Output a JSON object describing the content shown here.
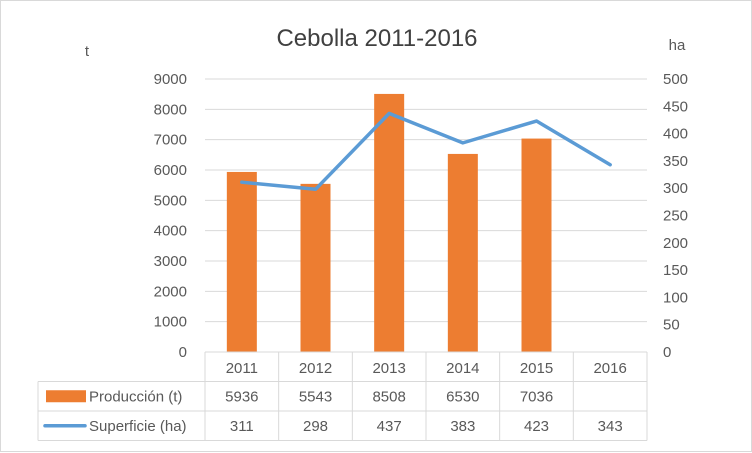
{
  "chart_data": {
    "type": "bar",
    "title": "Cebolla 2011-2016",
    "left_axis_unit": "t",
    "right_axis_unit": "ha",
    "categories": [
      "2011",
      "2012",
      "2013",
      "2014",
      "2015",
      "2016"
    ],
    "y_left": {
      "min": 0,
      "max": 9000,
      "step": 1000,
      "ticks": [
        "0",
        "1000",
        "2000",
        "3000",
        "4000",
        "5000",
        "6000",
        "7000",
        "8000",
        "9000"
      ]
    },
    "y_right": {
      "min": 0,
      "max": 500,
      "step": 50,
      "ticks": [
        "0",
        "50",
        "100",
        "150",
        "200",
        "250",
        "300",
        "350",
        "400",
        "450",
        "500"
      ]
    },
    "series": [
      {
        "name": "Producción (t)",
        "type": "bar",
        "axis": "left",
        "color": "#ed7d31",
        "values": [
          5936,
          5543,
          8508,
          6530,
          7036,
          null
        ],
        "table_values": [
          "5936",
          "5543",
          "8508",
          "6530",
          "7036",
          ""
        ]
      },
      {
        "name": "Superficie (ha)",
        "type": "line",
        "axis": "right",
        "color": "#5b9bd5",
        "values": [
          311,
          298,
          437,
          383,
          423,
          343
        ],
        "table_values": [
          "311",
          "298",
          "437",
          "383",
          "423",
          "343"
        ]
      }
    ],
    "grid": true,
    "data_table": true
  }
}
